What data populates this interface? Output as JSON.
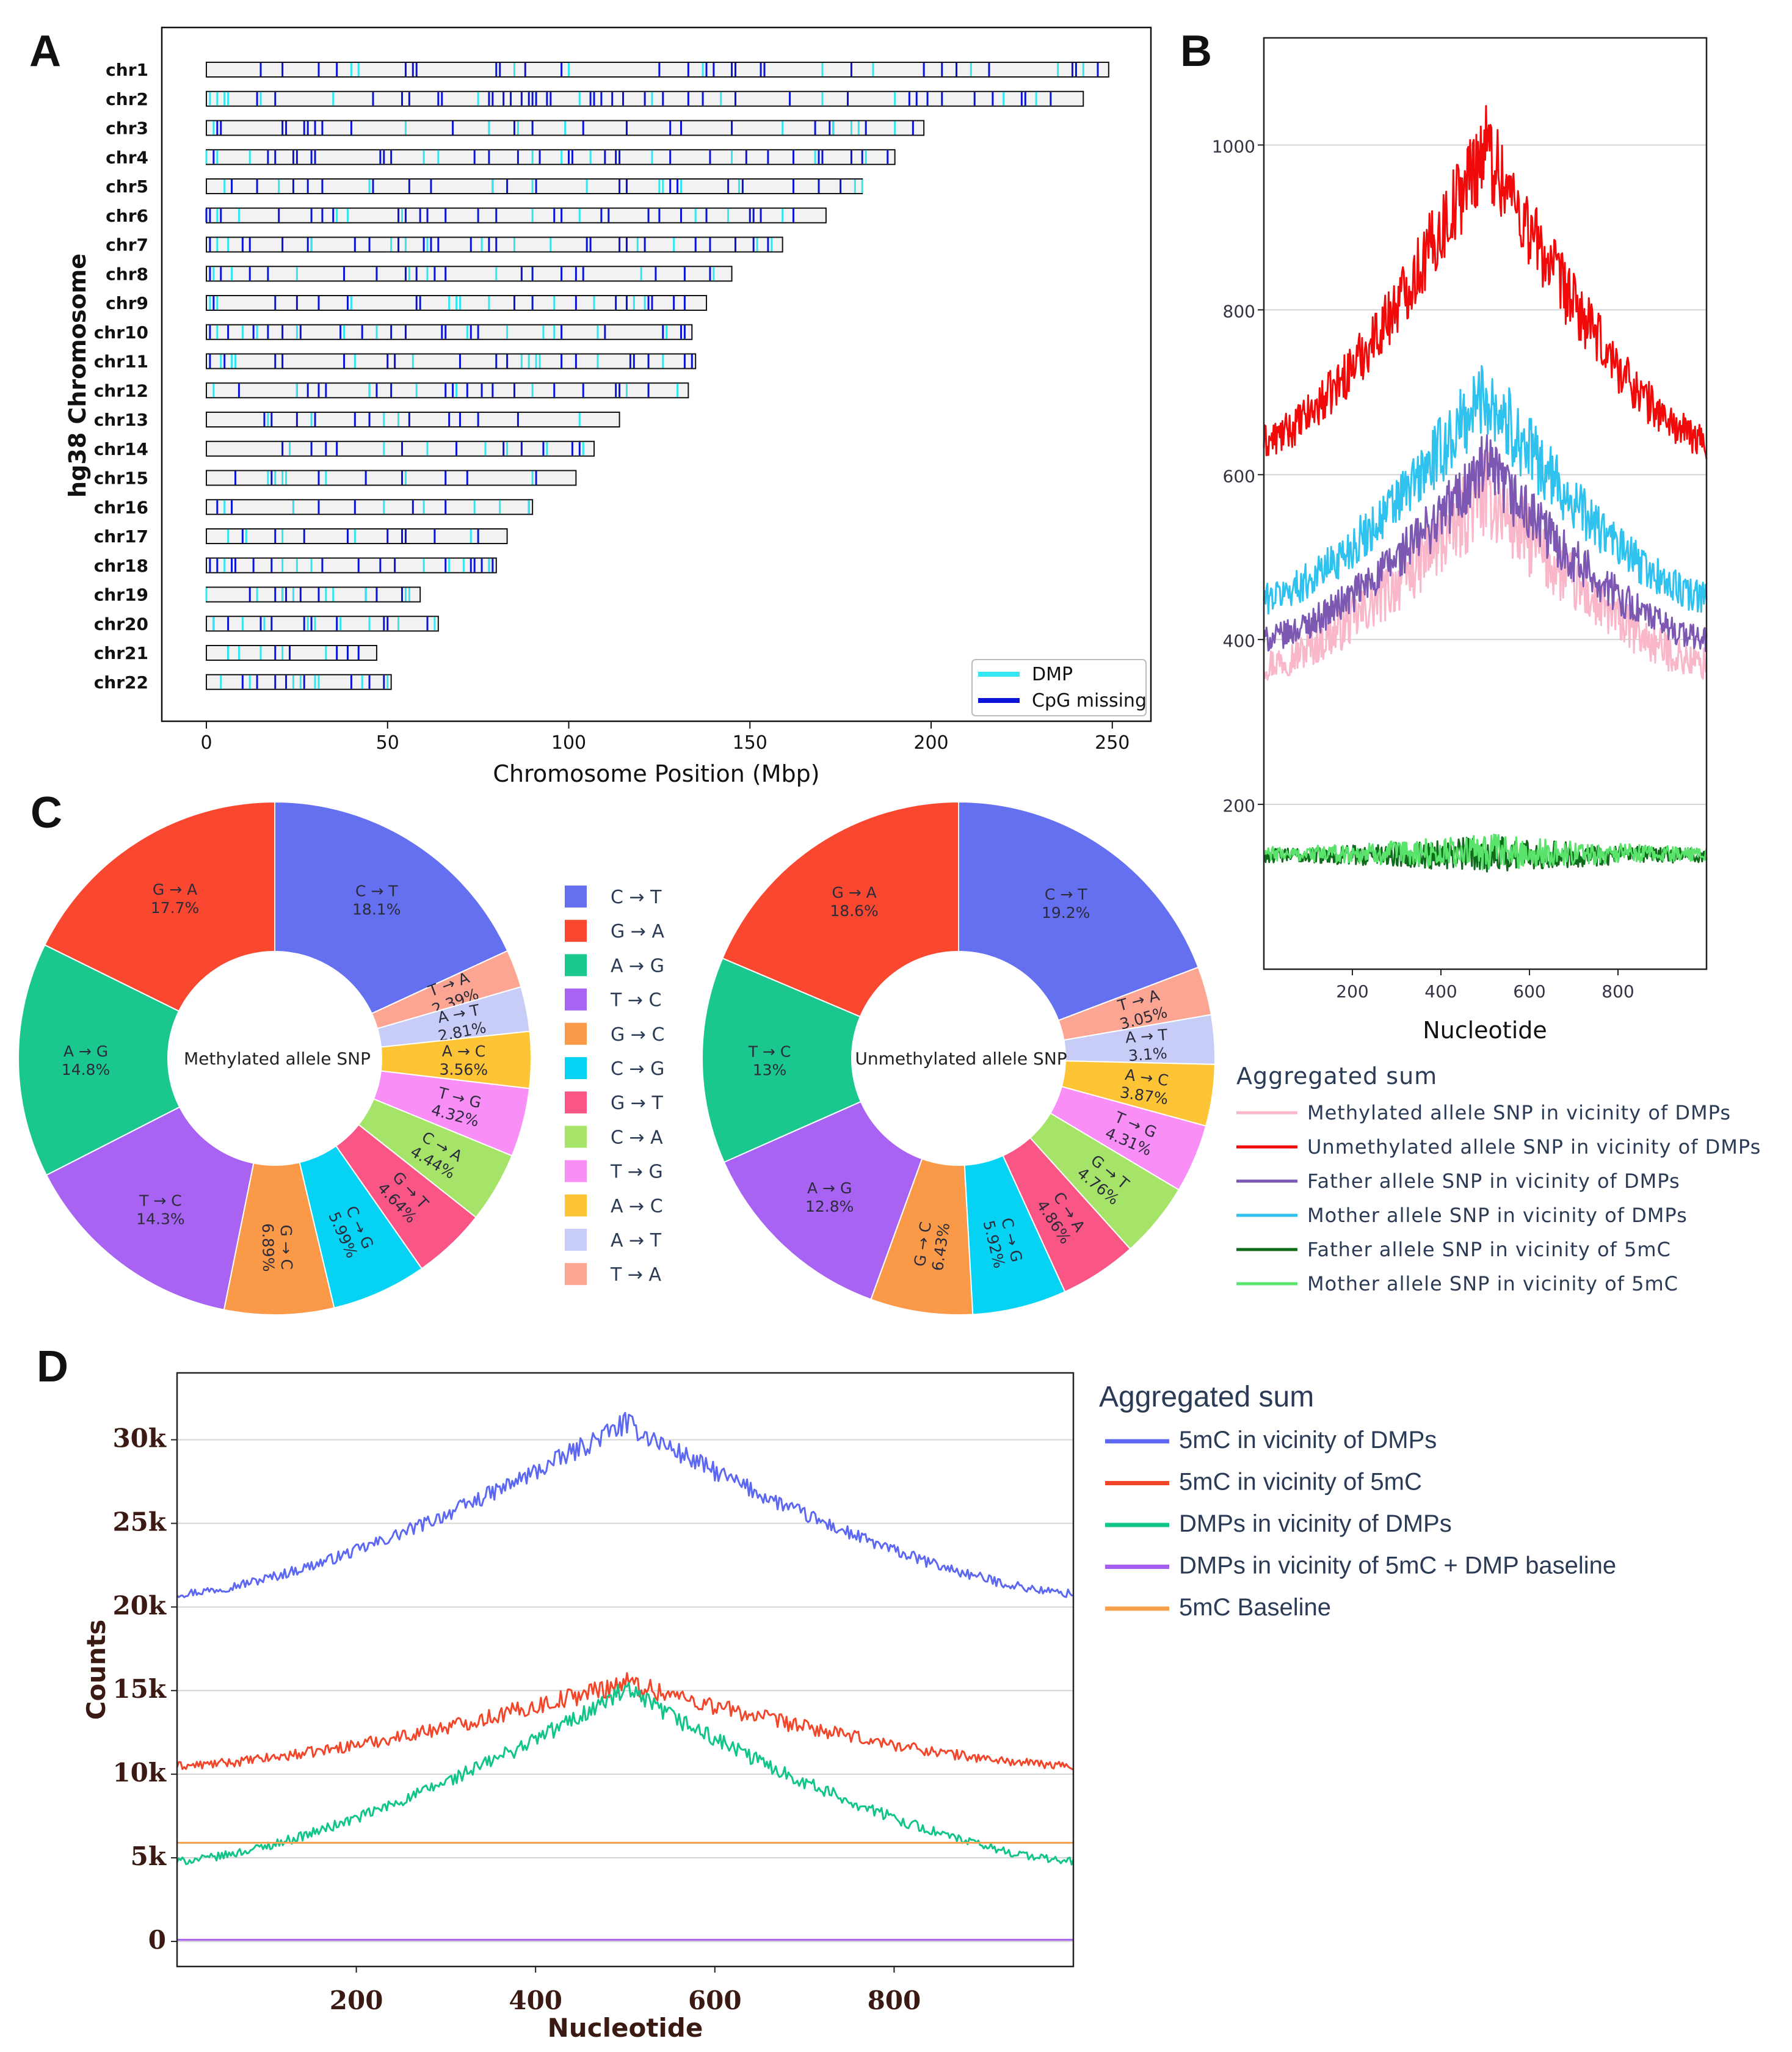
{
  "panels": {
    "a": "A",
    "b": "B",
    "c": "C",
    "d": "D"
  },
  "chart_data": [
    {
      "id": "A",
      "type": "bar",
      "title": "",
      "xlabel": "Chromosome Position (Mbp)",
      "ylabel": "hg38 Chromosome",
      "xlim": [
        0,
        250
      ],
      "xticks": [
        0,
        50,
        100,
        150,
        200,
        250
      ],
      "categories": [
        "chr1",
        "chr2",
        "chr3",
        "chr4",
        "chr5",
        "chr6",
        "chr7",
        "chr8",
        "chr9",
        "chr10",
        "chr11",
        "chr12",
        "chr13",
        "chr14",
        "chr15",
        "chr16",
        "chr17",
        "chr18",
        "chr19",
        "chr20",
        "chr21",
        "chr22"
      ],
      "lengths": [
        249,
        242,
        198,
        190,
        181,
        171,
        159,
        145,
        138,
        134,
        135,
        133,
        114,
        107,
        102,
        90,
        83,
        80,
        59,
        64,
        47,
        51
      ],
      "legend": [
        {
          "name": "DMP",
          "color": "#33e6f0"
        },
        {
          "name": "CpG missing",
          "color": "#0a14d6"
        }
      ],
      "dmp_positions": [
        [
          40,
          42,
          85,
          100,
          137,
          170,
          184,
          211,
          235,
          242
        ],
        [
          1,
          3,
          5,
          6,
          15,
          35,
          75,
          103,
          123,
          142,
          170,
          190,
          220,
          229
        ],
        [
          2,
          55,
          78,
          86,
          99,
          159,
          173,
          178,
          180,
          190
        ],
        [
          0,
          3,
          12,
          60,
          64,
          90,
          98,
          106,
          123,
          145,
          168,
          182
        ],
        [
          5,
          20,
          45,
          79,
          90,
          105,
          125,
          126,
          131,
          147,
          179,
          181
        ],
        [
          3,
          9,
          36,
          39,
          54,
          90,
          103,
          135,
          144,
          159
        ],
        [
          3,
          6,
          29,
          51,
          55,
          61,
          76,
          85,
          95,
          119,
          129,
          152,
          156
        ],
        [
          2,
          7,
          25,
          56,
          61,
          80,
          120,
          140
        ],
        [
          1,
          3,
          40,
          67,
          69,
          70,
          78,
          96,
          107,
          118,
          121
        ],
        [
          3,
          10,
          14,
          25,
          38,
          47,
          72,
          83,
          93,
          96,
          108,
          127
        ],
        [
          4,
          7,
          8,
          41,
          57,
          87,
          89,
          91,
          92,
          108,
          126
        ],
        [
          2,
          25,
          45,
          58,
          69,
          90,
          116,
          130
        ],
        [
          17,
          29,
          49,
          53,
          103
        ],
        [
          23,
          49,
          61,
          77,
          83,
          94,
          104
        ],
        [
          17,
          19,
          21,
          22,
          33,
          55,
          90
        ],
        [
          5,
          24,
          49,
          60,
          74,
          81,
          89
        ],
        [
          6,
          11,
          21,
          41,
          73
        ],
        [
          5,
          21,
          25,
          29,
          60,
          67,
          71,
          78
        ],
        [
          0,
          14,
          21,
          24,
          33,
          35,
          44,
          55,
          56
        ],
        [
          2,
          10,
          16,
          28,
          30,
          37,
          45,
          53,
          63
        ],
        [
          6,
          9,
          15,
          21,
          33
        ],
        [
          4,
          12,
          24,
          26,
          30,
          31,
          43,
          50
        ]
      ],
      "cpg_positions": [
        [
          15,
          21,
          31,
          36,
          55,
          57,
          58,
          80,
          81,
          88,
          98,
          125,
          133,
          138,
          140,
          145,
          146,
          153,
          154,
          178,
          198,
          203,
          207,
          216,
          239,
          240,
          246
        ],
        [
          14,
          19,
          46,
          54,
          56,
          64,
          65,
          78,
          79,
          82,
          84,
          87,
          89,
          90,
          91,
          94,
          95,
          106,
          107,
          109,
          112,
          115,
          121,
          126,
          133,
          137,
          146,
          161,
          177,
          194,
          196,
          199,
          203,
          212,
          217,
          225,
          226,
          233
        ],
        [
          3,
          4,
          21,
          22,
          27,
          28,
          30,
          32,
          40,
          68,
          78,
          85,
          90,
          104,
          116,
          128,
          131,
          145,
          168,
          172,
          173,
          182,
          195
        ],
        [
          2,
          17,
          19,
          24,
          25,
          29,
          30,
          48,
          49,
          51,
          74,
          78,
          86,
          92,
          100,
          101,
          110,
          113,
          114,
          128,
          139,
          149,
          155,
          162,
          169,
          170,
          178,
          181,
          188
        ],
        [
          7,
          14,
          24,
          28,
          32,
          46,
          56,
          62,
          79,
          83,
          91,
          114,
          116,
          128,
          130,
          144,
          148,
          162,
          169,
          175
        ],
        [
          0,
          1,
          4,
          20,
          29,
          32,
          35,
          53,
          55,
          59,
          61,
          66,
          75,
          80,
          96,
          98,
          109,
          111,
          122,
          125,
          131,
          138,
          150,
          151,
          153,
          162
        ],
        [
          1,
          10,
          12,
          21,
          28,
          29,
          41,
          45,
          53,
          60,
          62,
          64,
          73,
          78,
          80,
          105,
          106,
          114,
          116,
          121,
          135,
          139,
          146,
          151,
          155
        ],
        [
          1,
          4,
          12,
          17,
          38,
          47,
          55,
          58,
          63,
          66,
          87,
          90,
          98,
          102,
          104,
          124,
          132,
          139
        ],
        [
          2,
          19,
          25,
          31,
          39,
          58,
          59,
          85,
          90,
          102,
          113,
          116,
          122,
          123,
          129,
          132
        ],
        [
          1,
          6,
          13,
          17,
          21,
          26,
          37,
          43,
          51,
          55,
          65,
          66,
          73,
          75,
          98,
          110,
          126,
          131,
          132
        ],
        [
          1,
          5,
          19,
          21,
          38,
          50,
          52,
          70,
          80,
          83,
          98,
          102,
          117,
          118,
          122,
          132,
          134
        ],
        [
          9,
          25,
          28,
          31,
          33,
          45,
          47,
          51,
          66,
          68,
          72,
          76,
          79,
          85,
          96,
          104,
          113,
          114,
          122
        ],
        [
          16,
          18,
          25,
          30,
          41,
          45,
          56,
          67,
          70,
          75,
          86
        ],
        [
          21,
          29,
          33,
          36,
          54,
          69,
          82,
          87,
          93,
          101,
          103
        ],
        [
          8,
          18,
          31,
          44,
          54,
          66,
          72,
          91
        ],
        [
          3,
          7,
          24,
          31,
          41,
          57,
          66,
          89
        ],
        [
          10,
          19,
          27,
          39,
          50,
          54,
          55,
          63,
          75
        ],
        [
          1,
          3,
          7,
          8,
          13,
          18,
          32,
          42,
          48,
          52,
          66,
          73,
          74,
          76,
          78,
          79
        ],
        [
          0,
          12,
          19,
          21,
          22,
          26,
          31,
          44,
          47,
          54
        ],
        [
          2,
          6,
          15,
          18,
          27,
          29,
          36,
          49,
          50,
          61
        ],
        [
          6,
          19,
          23,
          36,
          39,
          42
        ],
        [
          10,
          14,
          19,
          22,
          27,
          40,
          45,
          49
        ]
      ]
    },
    {
      "id": "B",
      "type": "line",
      "xlabel": "Nucleotide",
      "ylabel": "",
      "xlim": [
        0,
        1000
      ],
      "ylim": [
        0,
        1130
      ],
      "xticks": [
        200,
        400,
        600,
        800
      ],
      "yticks": [
        200,
        400,
        600,
        800,
        1000
      ],
      "legend_title": "Aggregated sum",
      "series": [
        {
          "name": "Methylated allele SNP in vicinity of DMPs",
          "color": "#f9b7c9",
          "base": 370,
          "peak": 580,
          "noise": 34
        },
        {
          "name": "Unmethylated allele SNP in vicinity of DMPs",
          "color": "#f00a0a",
          "base": 640,
          "peak": 1000,
          "noise": 36
        },
        {
          "name": "Father allele SNP in vicinity of DMPs",
          "color": "#7d58b3",
          "base": 400,
          "peak": 610,
          "noise": 26
        },
        {
          "name": "Mother allele SNP in vicinity of DMPs",
          "color": "#2fc2ee",
          "base": 450,
          "peak": 700,
          "noise": 32
        },
        {
          "name": "Father allele SNP in vicinity of 5mC",
          "color": "#0d6b1a",
          "base": 138,
          "peak": 140,
          "noise": 14
        },
        {
          "name": "Mother allele SNP in vicinity of 5mC",
          "color": "#59e36b",
          "base": 140,
          "peak": 142,
          "noise": 14
        }
      ]
    },
    {
      "id": "C1",
      "type": "pie",
      "title": "Methylated allele SNP",
      "categories": [
        "C → T",
        "T → A",
        "A → T",
        "A → C",
        "T → G",
        "C → A",
        "G → T",
        "C → G",
        "G → C",
        "T → C",
        "A → G",
        "G → A"
      ],
      "values": [
        18.1,
        2.39,
        2.81,
        3.56,
        4.32,
        4.44,
        4.64,
        5.99,
        6.89,
        14.3,
        14.8,
        17.7
      ],
      "labels": [
        "C → T\n18.1%",
        "T → A\n2.39%",
        "A → T\n2.81%",
        "A → C\n3.56%",
        "T → G\n4.32%",
        "C → A\n4.44%",
        "G → T\n4.64%",
        "C → G\n5.99%",
        "G → C\n6.89%",
        "T → C\n14.3%",
        "A → G\n14.8%",
        "G → A\n17.7%"
      ],
      "colors": [
        "#6470f0",
        "#fba592",
        "#c7cdf7",
        "#fdc435",
        "#f88ef6",
        "#a5e469",
        "#fa5685",
        "#06d3f3",
        "#fa9a49",
        "#a863f3",
        "#1ac88f",
        "#fa4730"
      ]
    },
    {
      "id": "C2",
      "type": "pie",
      "title": "Unmethylated allele SNP",
      "categories": [
        "C → T",
        "T → A",
        "A → T",
        "A → C",
        "T → G",
        "G → T",
        "C → A",
        "C → G",
        "G → C",
        "A → G",
        "T → C",
        "G → A"
      ],
      "values": [
        19.2,
        3.05,
        3.1,
        3.87,
        4.31,
        4.76,
        4.86,
        5.92,
        6.43,
        12.8,
        13,
        18.6
      ],
      "labels": [
        "C → T\n19.2%",
        "T → A\n3.05%",
        "A → T\n3.1%",
        "A → C\n3.87%",
        "T → G\n4.31%",
        "G → T\n4.76%",
        "C → A\n4.86%",
        "C → G\n5.92%",
        "G → C\n6.43%",
        "A → G\n12.8%",
        "T → C\n13%",
        "G → A\n18.6%"
      ],
      "colors": [
        "#6470f0",
        "#fba592",
        "#c7cdf7",
        "#fdc435",
        "#f88ef6",
        "#a5e469",
        "#fa5685",
        "#06d3f3",
        "#fa9a49",
        "#a863f3",
        "#1ac88f",
        "#fa4730"
      ]
    },
    {
      "id": "C-legend",
      "type": "legend",
      "entries": [
        {
          "name": "C → T",
          "color": "#6470f0"
        },
        {
          "name": "G → A",
          "color": "#fa4730"
        },
        {
          "name": "A → G",
          "color": "#1ac88f"
        },
        {
          "name": "T → C",
          "color": "#a863f3"
        },
        {
          "name": "G → C",
          "color": "#fa9a49"
        },
        {
          "name": "C → G",
          "color": "#06d3f3"
        },
        {
          "name": "G → T",
          "color": "#fa5685"
        },
        {
          "name": "C → A",
          "color": "#a5e469"
        },
        {
          "name": "T → G",
          "color": "#f88ef6"
        },
        {
          "name": "A → C",
          "color": "#fdc435"
        },
        {
          "name": "A → T",
          "color": "#c7cdf7"
        },
        {
          "name": "T → A",
          "color": "#fba592"
        }
      ]
    },
    {
      "id": "D",
      "type": "line",
      "xlabel": "Nucleotide",
      "ylabel": "Counts",
      "xlim": [
        0,
        1000
      ],
      "ylim": [
        -1500,
        34000
      ],
      "xticks": [
        200,
        400,
        600,
        800
      ],
      "yticks": [
        0,
        5000,
        10000,
        15000,
        20000,
        25000,
        30000
      ],
      "ytick_labels": [
        "0",
        "5k",
        "10k",
        "15k",
        "20k",
        "25k",
        "30k"
      ],
      "legend_title": "Aggregated sum",
      "series": [
        {
          "name": "5mC in vicinity of DMPs",
          "color": "#5c67f2",
          "base": 20800,
          "peak": 31000,
          "noise": 420
        },
        {
          "name": "5mC in vicinity of 5mC",
          "color": "#f2462b",
          "base": 10500,
          "peak": 15500,
          "noise": 420
        },
        {
          "name": "DMPs in vicinity of DMPs",
          "color": "#11c48a",
          "base": 4800,
          "peak": 15000,
          "noise": 380
        },
        {
          "name": "DMPs in vicinity of 5mC + DMP baseline",
          "color": "#a55cf0",
          "base": 100,
          "peak": 100,
          "noise": 0
        },
        {
          "name": "5mC Baseline",
          "color": "#f6a04e",
          "base": 5900,
          "peak": 5900,
          "noise": 0
        }
      ]
    }
  ]
}
